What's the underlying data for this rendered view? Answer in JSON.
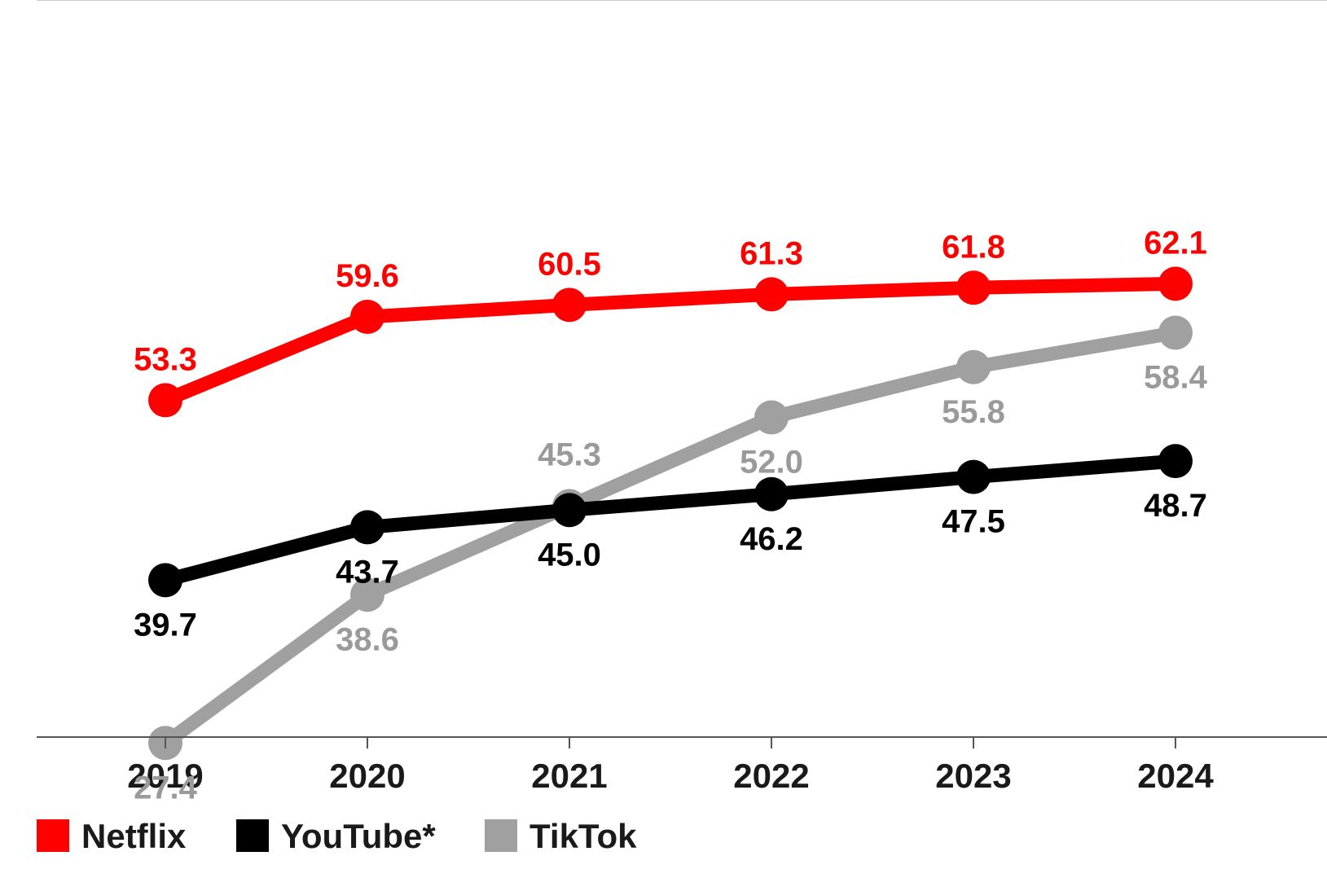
{
  "chart_data": {
    "type": "line",
    "title": "",
    "xlabel": "",
    "ylabel": "",
    "categories": [
      "2019",
      "2020",
      "2021",
      "2022",
      "2023",
      "2024"
    ],
    "ylim": [
      20,
      66
    ],
    "grid": false,
    "legend_placement": "bottom-left",
    "series": [
      {
        "name": "Netflix",
        "color": "#ff0000",
        "values": [
          53.3,
          59.6,
          60.5,
          61.3,
          61.8,
          62.1
        ],
        "labels": [
          "53.3",
          "59.6",
          "60.5",
          "61.3",
          "61.8",
          "62.1"
        ],
        "label_position": [
          "above",
          "above",
          "above",
          "above",
          "above",
          "above"
        ]
      },
      {
        "name": "YouTube*",
        "color": "#000000",
        "values": [
          39.7,
          43.7,
          45.0,
          46.2,
          47.5,
          48.7
        ],
        "labels": [
          "39.7",
          "43.7",
          "45.0",
          "46.2",
          "47.5",
          "48.7"
        ],
        "label_position": [
          "below",
          "below",
          "below",
          "below",
          "below",
          "below"
        ]
      },
      {
        "name": "TikTok",
        "color": "#a0a0a0",
        "values": [
          27.4,
          38.6,
          45.3,
          52.0,
          55.8,
          58.4
        ],
        "labels": [
          "27.4",
          "38.6",
          "45.3",
          "52.0",
          "55.8",
          "58.4"
        ],
        "label_position": [
          "below",
          "below",
          "above",
          "below",
          "below",
          "below"
        ]
      }
    ]
  }
}
